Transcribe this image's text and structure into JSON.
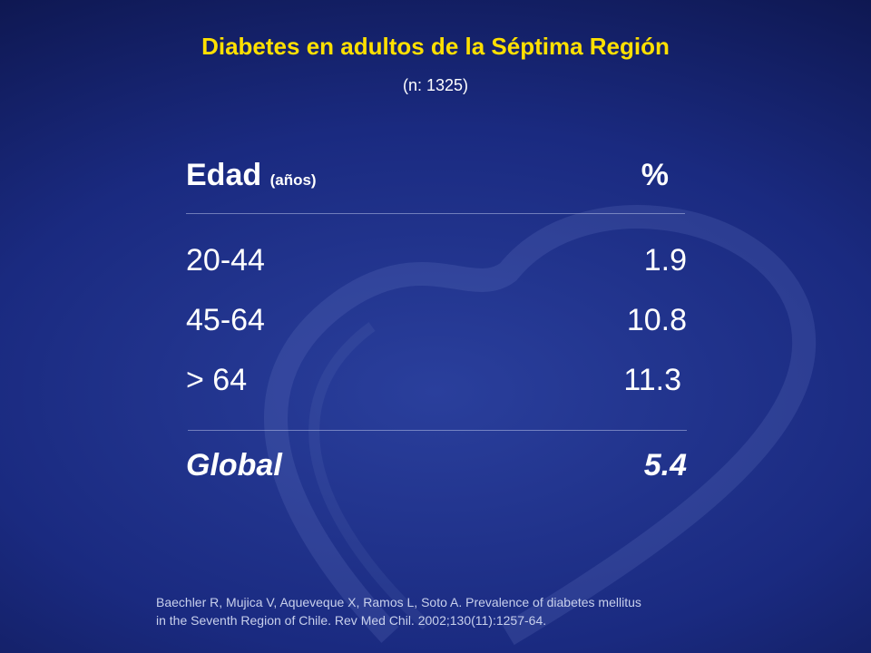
{
  "slide": {
    "title": "Diabetes en adultos de la Séptima Región",
    "subtitle": "(n: 1325)"
  },
  "table": {
    "header": {
      "label": "Edad",
      "label_unit": "(años)",
      "value": "%"
    },
    "rows": [
      {
        "label": "20-44",
        "value": "1.9"
      },
      {
        "label": "45-64",
        "value": "10.8"
      },
      {
        "label": "> 64",
        "value": "11.3"
      }
    ],
    "total": {
      "label": "Global",
      "value": "5.4"
    }
  },
  "citation": {
    "line1": "Baechler R, Mujica V, Aqueveque X, Ramos L, Soto A. Prevalence of diabetes mellitus",
    "line2": "in the Seventh Region of Chile. Rev Med Chil. 2002;130(11):1257-64."
  },
  "colors": {
    "title": "#ffe000",
    "text": "#ffffff",
    "background": "#1a2a80"
  }
}
